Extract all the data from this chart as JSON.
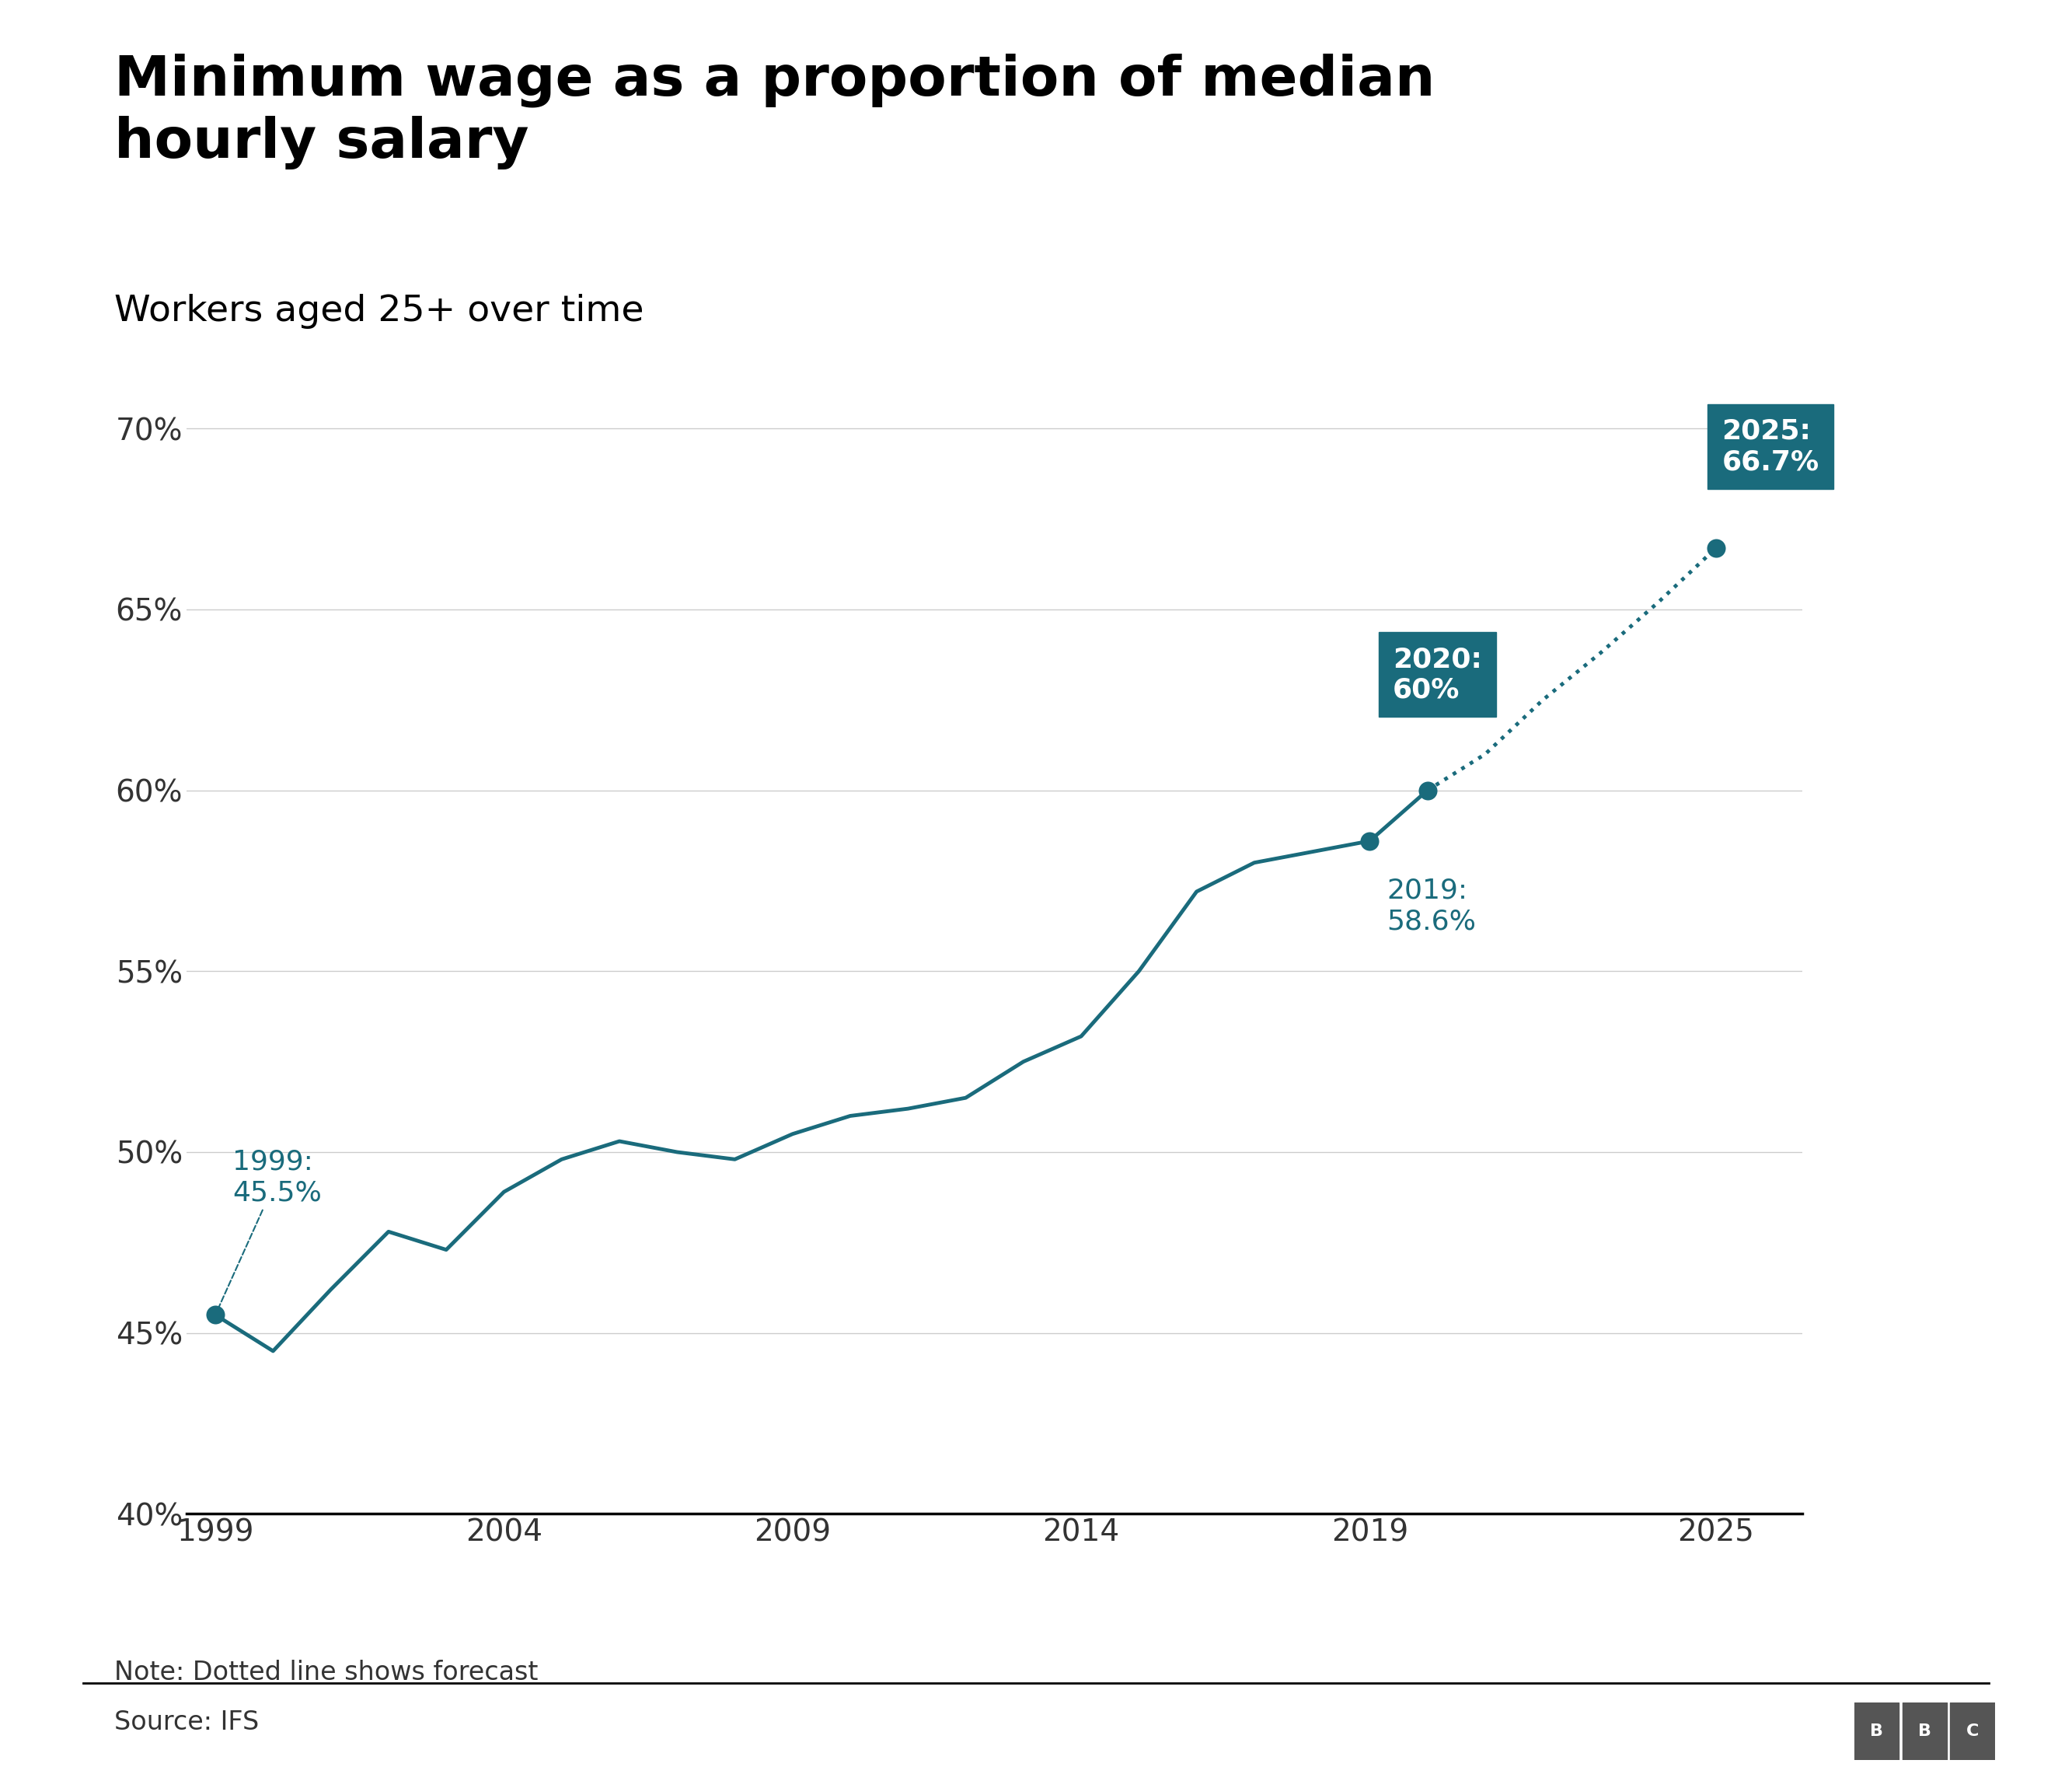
{
  "title": "Minimum wage as a proportion of median\nhourly salary",
  "subtitle": "Workers aged 25+ over time",
  "note": "Note: Dotted line shows forecast",
  "source": "Source: IFS",
  "line_color": "#1a6b7c",
  "background_color": "#ffffff",
  "solid_data": {
    "years": [
      1999,
      2000,
      2001,
      2002,
      2003,
      2004,
      2005,
      2006,
      2007,
      2008,
      2009,
      2010,
      2011,
      2012,
      2013,
      2014,
      2015,
      2016,
      2017,
      2018,
      2019,
      2020
    ],
    "values": [
      45.5,
      44.5,
      46.2,
      47.8,
      47.3,
      48.9,
      49.8,
      50.3,
      50.0,
      49.8,
      50.5,
      51.0,
      51.2,
      51.5,
      52.5,
      53.2,
      55.0,
      57.2,
      58.0,
      58.3,
      58.6,
      60.0
    ]
  },
  "dotted_data": {
    "years": [
      2020,
      2021,
      2022,
      2023,
      2024,
      2025
    ],
    "values": [
      60.0,
      61.0,
      62.5,
      63.8,
      65.2,
      66.7
    ]
  },
  "box_color": "#1a6b7c",
  "box_text_color": "#ffffff",
  "annotation_text_color": "#1a6b7c",
  "ylim": [
    40,
    72
  ],
  "yticks": [
    40,
    45,
    50,
    55,
    60,
    65,
    70
  ],
  "ytick_labels": [
    "40%",
    "45%",
    "50%",
    "55%",
    "60%",
    "65%",
    "70%"
  ],
  "xlim": [
    1998.5,
    2026.5
  ],
  "xticks": [
    1999,
    2004,
    2009,
    2014,
    2019,
    2025
  ],
  "marker_years": [
    1999,
    2019,
    2020,
    2025
  ],
  "marker_values": [
    45.5,
    58.6,
    60.0,
    66.7
  ],
  "line_width": 3.5
}
